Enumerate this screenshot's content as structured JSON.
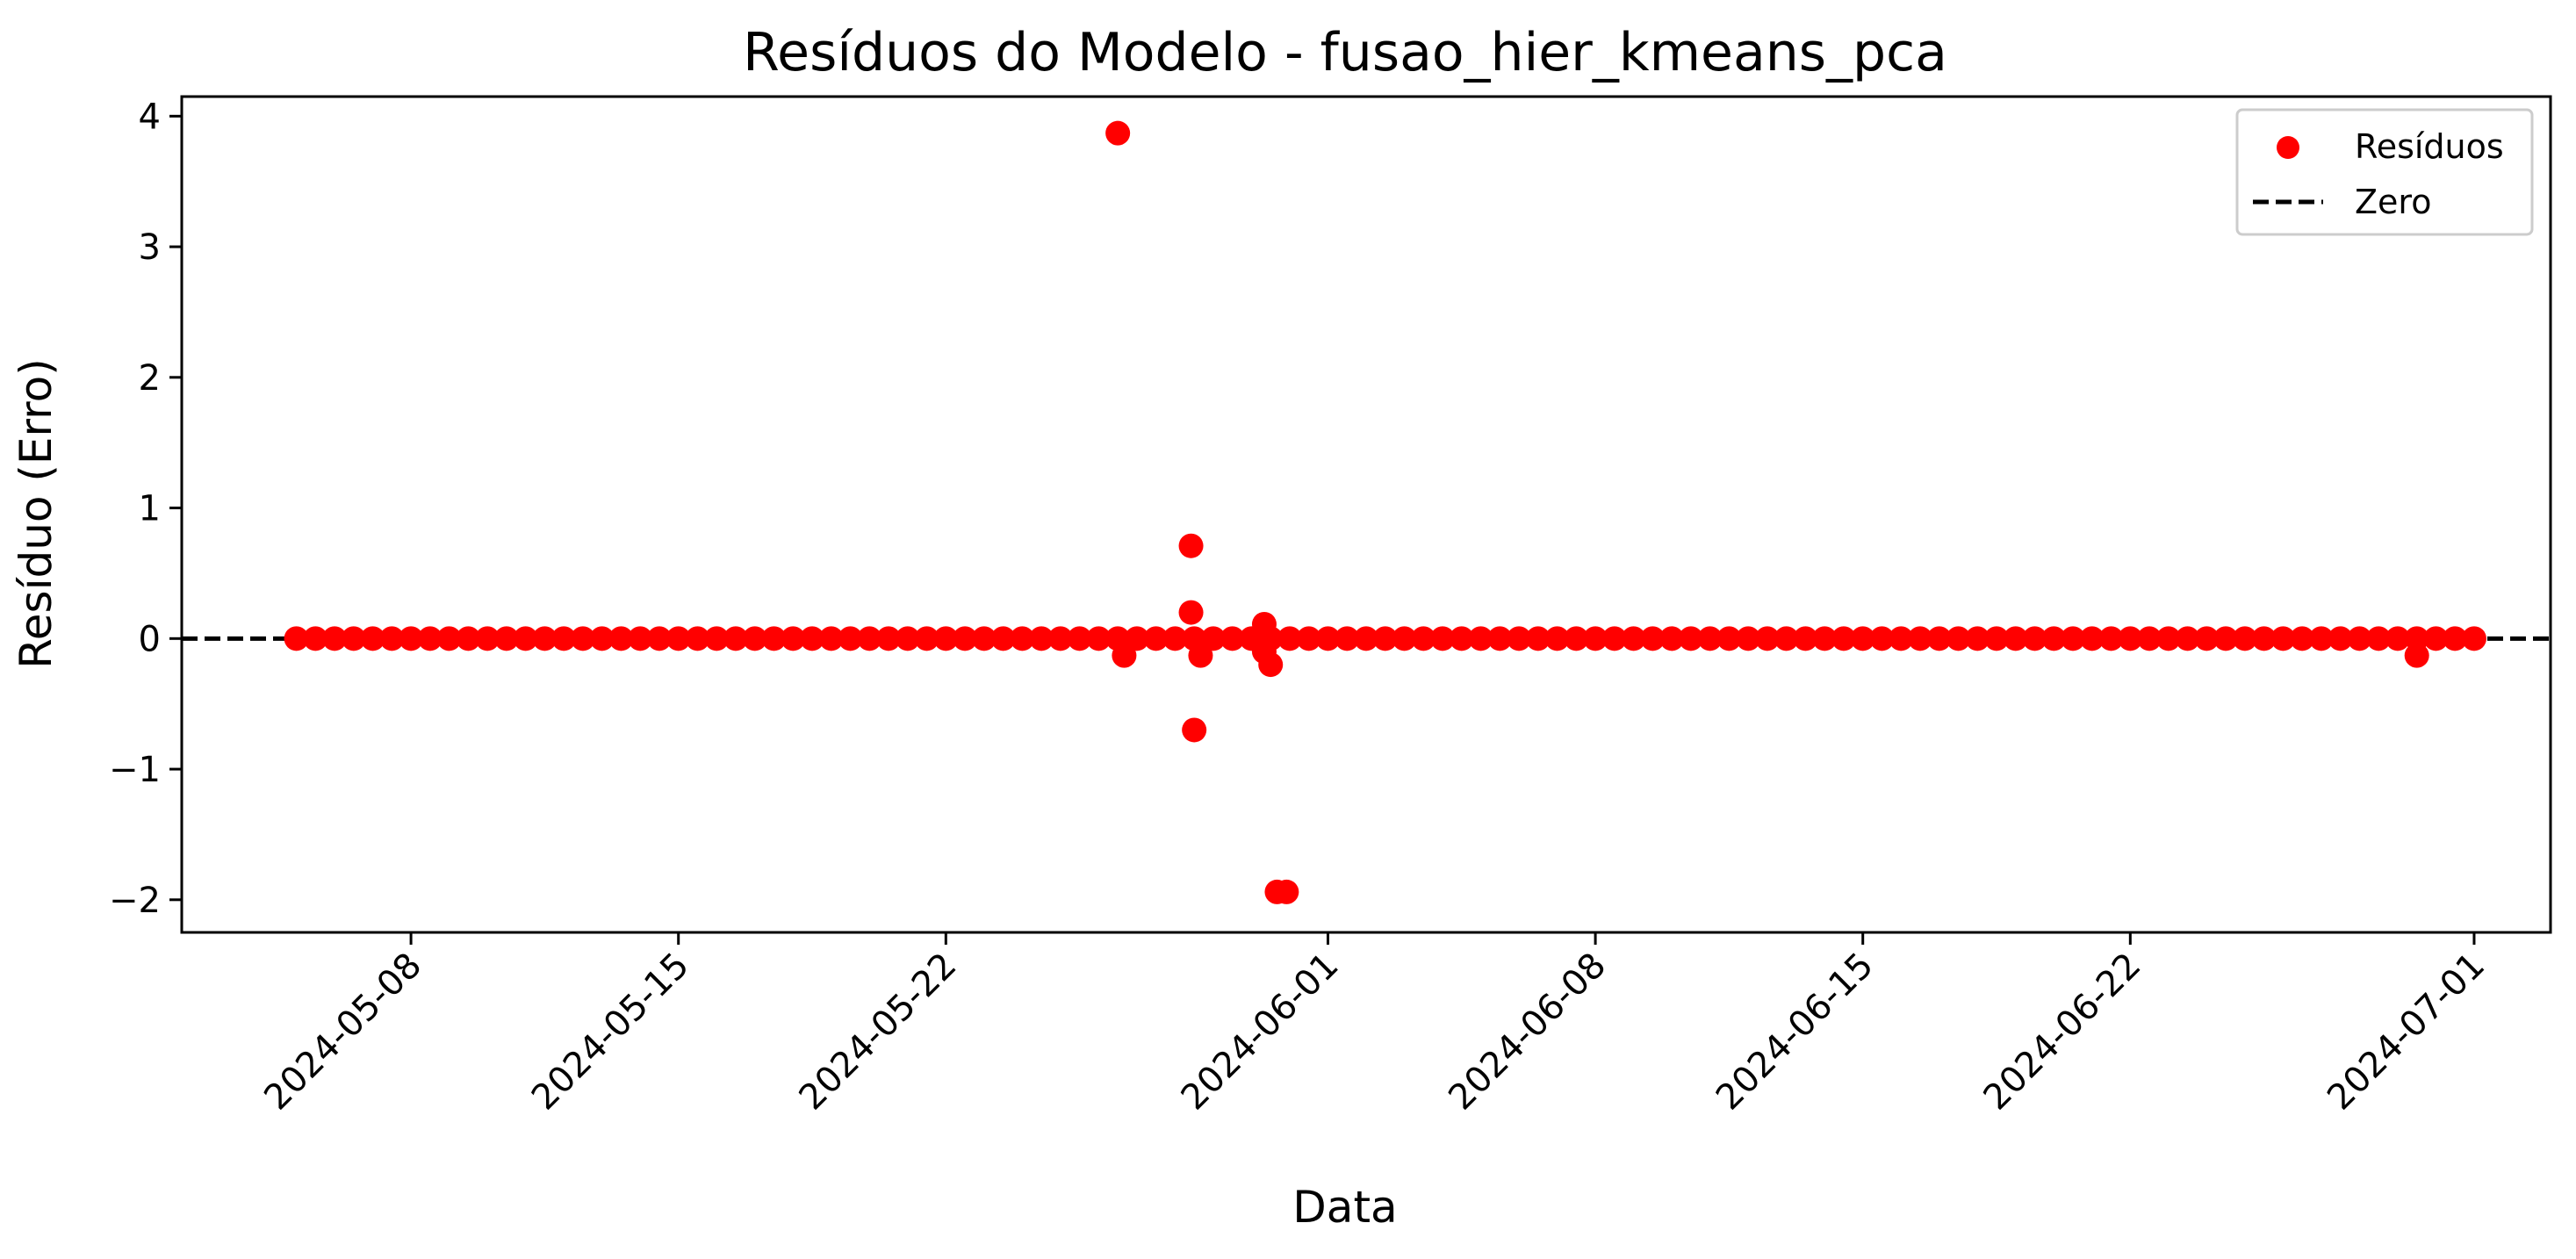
{
  "chart_data": {
    "type": "scatter",
    "title": "Resíduos do Modelo - fusao_hier_kmeans_pca",
    "xlabel": "Data",
    "ylabel": "Resíduo (Erro)",
    "xlim": [
      "2024-05-02T00:00",
      "2024-07-03T00:00"
    ],
    "ylim": [
      -2.25,
      4.15
    ],
    "x_ticks": [
      "2024-05-08",
      "2024-05-15",
      "2024-05-22",
      "2024-06-01",
      "2024-06-08",
      "2024-06-15",
      "2024-06-22",
      "2024-07-01"
    ],
    "y_ticks": [
      -2,
      -1,
      0,
      1,
      2,
      3,
      4
    ],
    "y_tick_labels": [
      "−2",
      "−1",
      "0",
      "1",
      "2",
      "3",
      "4"
    ],
    "grid": false,
    "legend_position": "top-right",
    "series": [
      {
        "name": "Resíduos",
        "kind": "scatter",
        "color": "#ff0000",
        "points": [
          [
            "2024-05-26T12:00",
            3.87
          ],
          [
            "2024-05-26T16:00",
            -0.13
          ],
          [
            "2024-05-28T10:00",
            0.71
          ],
          [
            "2024-05-28T10:00",
            0.2
          ],
          [
            "2024-05-28T12:00",
            -0.7
          ],
          [
            "2024-05-28T16:00",
            -0.13
          ],
          [
            "2024-05-30T08:00",
            0.11
          ],
          [
            "2024-05-30T08:00",
            -0.1
          ],
          [
            "2024-05-30T12:00",
            -0.2
          ],
          [
            "2024-05-30T16:00",
            -1.94
          ],
          [
            "2024-05-30T22:00",
            -1.94
          ],
          [
            "2024-06-29T12:00",
            -0.13
          ]
        ],
        "zero_points_range": [
          "2024-05-05T00:00",
          "2024-07-01T00:00"
        ],
        "zero_points_step_hours": 12
      },
      {
        "name": "Zero",
        "kind": "hline",
        "value": 0,
        "color": "#000000",
        "style": "dashed"
      }
    ]
  }
}
